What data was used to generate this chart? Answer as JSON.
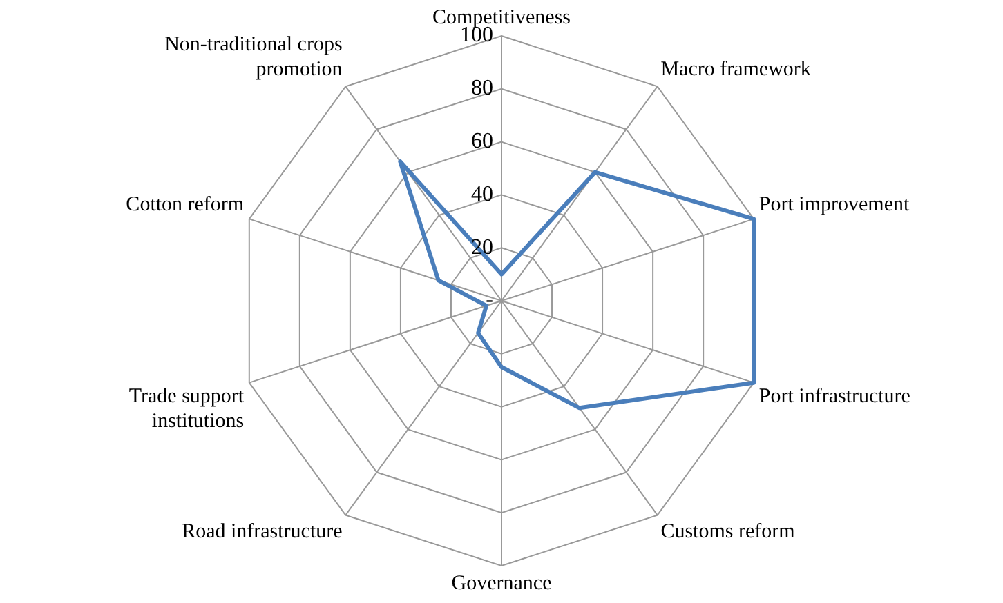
{
  "chart_data": {
    "type": "radar",
    "categories": [
      "Competitiveness",
      "Macro framework",
      "Port improvement",
      "Port infrastructure",
      "Customs reform",
      "Governance",
      "Road infrastructure",
      "Trade support institutions",
      "Cotton reform",
      "Non-traditional crops promotion"
    ],
    "series": [
      {
        "color": "#4a7ebb",
        "values": [
          10,
          60,
          100,
          100,
          50,
          25,
          15,
          6,
          25,
          65
        ]
      }
    ],
    "ylim": [
      0,
      100
    ],
    "yticks": [
      {
        "value": 0,
        "label": "-"
      },
      20,
      40,
      60,
      80,
      100
    ],
    "grid": true,
    "legend": false,
    "marker": "none"
  }
}
